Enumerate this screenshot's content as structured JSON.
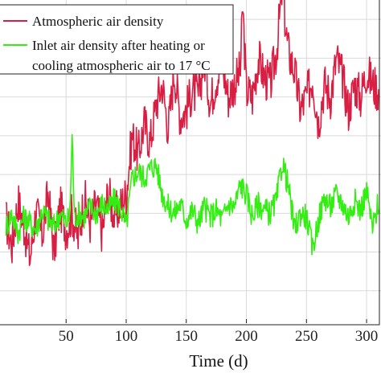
{
  "colors": {
    "atmospheric": "#d81e43",
    "inlet": "#33ee11",
    "axis": "#222222",
    "grid": "#d9d9d9"
  },
  "chart_data": {
    "type": "line",
    "title": "",
    "xlabel": "Time (d)",
    "ylabel": "",
    "xlim": [
      -5,
      312
    ],
    "ylim": [
      0,
      100
    ],
    "grid": true,
    "legend_position": "top-left",
    "x_ticks": [
      50,
      100,
      150,
      200,
      250,
      300
    ],
    "x_tick_labels": [
      "50",
      "100",
      "150",
      "200",
      "250",
      "300"
    ],
    "series": [
      {
        "name": "Atmospheric air density",
        "color": "#d81e43",
        "x": [
          0,
          5,
          10,
          15,
          20,
          25,
          30,
          35,
          40,
          45,
          50,
          55,
          60,
          65,
          70,
          75,
          80,
          85,
          90,
          95,
          100,
          105,
          110,
          115,
          120,
          125,
          130,
          135,
          140,
          145,
          150,
          155,
          160,
          165,
          170,
          175,
          180,
          185,
          190,
          195,
          197,
          200,
          205,
          210,
          215,
          220,
          225,
          230,
          233,
          235,
          240,
          245,
          250,
          255,
          260,
          265,
          270,
          275,
          280,
          285,
          290,
          295,
          300,
          305,
          310
        ],
        "y": [
          32,
          24,
          38,
          30,
          20,
          35,
          27,
          40,
          22,
          36,
          29,
          34,
          26,
          39,
          31,
          37,
          28,
          41,
          33,
          36,
          40,
          58,
          52,
          62,
          56,
          68,
          74,
          60,
          78,
          64,
          66,
          72,
          70,
          82,
          68,
          76,
          80,
          70,
          74,
          78,
          98,
          72,
          70,
          82,
          76,
          74,
          84,
          104,
          90,
          84,
          78,
          66,
          70,
          76,
          62,
          74,
          70,
          82,
          76,
          66,
          74,
          70,
          78,
          74,
          72
        ]
      },
      {
        "name": "Inlet air density after heating or cooling atmospheric air to 17 °C",
        "color": "#33ee11",
        "x": [
          0,
          5,
          10,
          15,
          20,
          25,
          30,
          35,
          40,
          45,
          50,
          53,
          55,
          57,
          60,
          65,
          70,
          75,
          80,
          85,
          90,
          95,
          100,
          105,
          110,
          115,
          120,
          125,
          130,
          135,
          140,
          145,
          150,
          155,
          160,
          165,
          170,
          175,
          180,
          185,
          190,
          195,
          200,
          205,
          210,
          215,
          220,
          225,
          230,
          235,
          240,
          245,
          250,
          255,
          260,
          265,
          270,
          275,
          280,
          285,
          290,
          295,
          300,
          305,
          310
        ],
        "y": [
          30,
          34,
          28,
          33,
          31,
          29,
          35,
          32,
          30,
          34,
          31,
          33,
          58,
          32,
          34,
          33,
          36,
          34,
          37,
          35,
          38,
          36,
          30,
          45,
          47,
          45,
          48,
          49,
          40,
          36,
          34,
          37,
          32,
          35,
          31,
          36,
          33,
          35,
          32,
          37,
          36,
          43,
          40,
          33,
          37,
          35,
          34,
          38,
          50,
          42,
          29,
          34,
          33,
          23,
          32,
          39,
          36,
          40,
          37,
          33,
          38,
          35,
          41,
          29,
          38
        ]
      }
    ]
  }
}
